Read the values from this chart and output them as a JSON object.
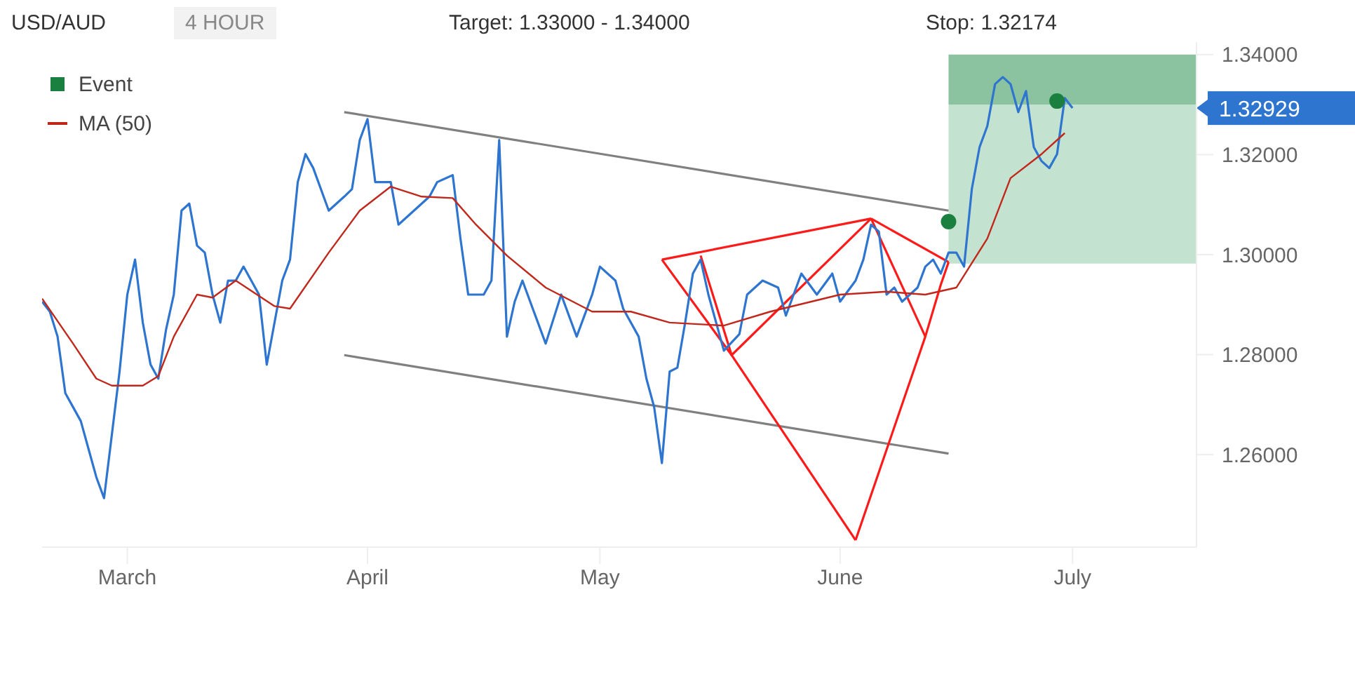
{
  "chart_data": {
    "type": "line",
    "title": "USD/AUD",
    "subtitle": "4 HOUR",
    "xlim": [
      "--02-18",
      "--07-17"
    ],
    "xticks": [
      {
        "value": "--03-01",
        "label": "March"
      },
      {
        "value": "--04-01",
        "label": "April"
      },
      {
        "value": "--05-01",
        "label": "May"
      },
      {
        "value": "--06-01",
        "label": "June"
      },
      {
        "value": "--07-01",
        "label": "July"
      }
    ],
    "ylim": [
      1.2415,
      1.3425
    ],
    "yticks": [
      {
        "value": 1.26,
        "label": "1.26000"
      },
      {
        "value": 1.28,
        "label": "1.28000"
      },
      {
        "value": 1.3,
        "label": "1.30000"
      },
      {
        "value": 1.32,
        "label": "1.32000"
      },
      {
        "value": 1.34,
        "label": "1.34000"
      }
    ],
    "grid": false,
    "legend": "top left",
    "marker": "none",
    "line_style": "solid",
    "bands": [
      {
        "axis": "y",
        "from": 1.33,
        "to": 1.34,
        "color": "#8bc29f"
      },
      {
        "axis": "y",
        "from": 1.2982,
        "to": 1.33,
        "color": "#c4e2d0"
      }
    ],
    "annotations": [
      "Target: 1.33000 - 1.34000",
      "Stop: 1.32174",
      "1.32929"
    ],
    "series": [
      {
        "name": "Event",
        "type": "scatter",
        "marker": "circle",
        "color": "#1a8040",
        "x": [
          "--06-15",
          "--06-29"
        ],
        "values": [
          1.3066,
          1.3307
        ]
      },
      {
        "color": "#808080",
        "x": [
          "--03-29",
          "--06-15"
        ],
        "values": [
          1.3285,
          1.3088
        ]
      },
      {
        "color": "#808080",
        "x": [
          "--03-29",
          "--06-15"
        ],
        "values": [
          1.2799,
          1.2602
        ]
      },
      {
        "color": "#ff1a1a",
        "x": [
          "--05-09",
          "--06-05"
        ],
        "values": [
          1.299,
          1.3072
        ]
      },
      {
        "color": "#ff1a1a",
        "x": [
          "--05-09",
          "--05-18",
          "--06-03"
        ],
        "values": [
          1.299,
          1.2799,
          1.2429
        ]
      },
      {
        "color": "#ff1a1a",
        "x": [
          "--06-03",
          "--06-12",
          "--06-14",
          "--06-15"
        ],
        "values": [
          1.2429,
          1.2836,
          1.294,
          1.2985
        ]
      },
      {
        "color": "#ff1a1a",
        "x": [
          "--06-05",
          "--06-12"
        ],
        "values": [
          1.3072,
          1.2836
        ]
      },
      {
        "color": "#ff1a1a",
        "x": [
          "--05-14",
          "--05-18",
          "--06-05"
        ],
        "values": [
          1.2998,
          1.2799,
          1.3072
        ]
      },
      {
        "color": "#ff1a1a",
        "x": [
          "--06-05",
          "--06-15"
        ],
        "values": [
          1.3072,
          1.2985
        ]
      },
      {
        "color": "#2e75d0",
        "x": [
          "--02-18",
          "--02-19",
          "--02-20",
          "--02-21",
          "--02-22",
          "--02-23",
          "--02-24",
          "--02-25",
          "--02-26",
          "--02-27",
          "--02-28",
          "--03-01",
          "--03-02",
          "--03-03",
          "--03-04",
          "--03-05",
          "--03-06",
          "--03-07",
          "--03-08",
          "--03-09",
          "--03-10",
          "--03-11",
          "--03-12",
          "--03-13",
          "--03-14",
          "--03-15",
          "--03-16",
          "--03-18",
          "--03-19",
          "--03-20",
          "--03-21",
          "--03-22",
          "--03-23",
          "--03-24",
          "--03-25",
          "--03-27",
          "--03-29",
          "--03-30",
          "--03-31",
          "--04-01",
          "--04-02",
          "--04-04",
          "--04-05",
          "--04-07",
          "--04-09",
          "--04-10",
          "--04-12",
          "--04-13",
          "--04-14",
          "--04-16",
          "--04-17",
          "--04-18",
          "--04-19",
          "--04-20",
          "--04-21",
          "--04-23",
          "--04-24",
          "--04-26",
          "--04-28",
          "--04-30",
          "--05-01",
          "--05-03",
          "--05-04",
          "--05-06",
          "--05-07",
          "--05-08",
          "--05-09",
          "--05-10",
          "--05-11",
          "--05-12",
          "--05-13",
          "--05-14",
          "--05-15",
          "--05-16",
          "--05-17",
          "--05-19",
          "--05-20",
          "--05-22",
          "--05-24",
          "--05-25",
          "--05-27",
          "--05-29",
          "--05-31",
          "--06-01",
          "--06-03",
          "--06-04",
          "--06-05",
          "--06-06",
          "--06-07",
          "--06-08",
          "--06-09",
          "--06-10",
          "--06-11",
          "--06-12",
          "--06-13",
          "--06-14",
          "--06-15",
          "--06-16",
          "--06-17",
          "--06-18",
          "--06-19",
          "--06-20",
          "--06-21",
          "--06-22",
          "--06-23",
          "--06-24",
          "--06-25",
          "--06-26",
          "--06-27",
          "--06-28",
          "--06-29",
          "--06-30",
          "--07-01"
        ],
        "values": [
          1.2906,
          1.2886,
          1.2836,
          1.2723,
          1.2695,
          1.2667,
          1.2611,
          1.2555,
          1.2513,
          1.2639,
          1.2766,
          1.292,
          1.299,
          1.2864,
          1.278,
          1.2752,
          1.285,
          1.292,
          1.3088,
          1.3102,
          1.3018,
          1.3004,
          1.292,
          1.2864,
          1.2948,
          1.2948,
          1.2976,
          1.292,
          1.278,
          1.2864,
          1.2948,
          1.299,
          1.3145,
          1.3201,
          1.3173,
          1.3088,
          1.3116,
          1.3131,
          1.3229,
          1.3271,
          1.3145,
          1.3145,
          1.306,
          1.3088,
          1.3116,
          1.3145,
          1.3159,
          1.3032,
          1.292,
          1.292,
          1.2948,
          1.3229,
          1.2836,
          1.2906,
          1.2948,
          1.2864,
          1.2822,
          1.292,
          1.2836,
          1.292,
          1.2976,
          1.2948,
          1.2892,
          1.2836,
          1.2752,
          1.2695,
          1.2583,
          1.2766,
          1.2774,
          1.2864,
          1.2962,
          1.299,
          1.292,
          1.2864,
          1.2808,
          1.2841,
          1.292,
          1.2948,
          1.2934,
          1.2878,
          1.2962,
          1.292,
          1.2962,
          1.2906,
          1.2948,
          1.299,
          1.306,
          1.3046,
          1.292,
          1.2934,
          1.2906,
          1.292,
          1.2934,
          1.2976,
          1.299,
          1.2962,
          1.3004,
          1.3004,
          1.2976,
          1.3131,
          1.3215,
          1.3257,
          1.3341,
          1.3355,
          1.3341,
          1.3285,
          1.3327,
          1.3215,
          1.3187,
          1.3173,
          1.3201,
          1.3313,
          1.3293
        ]
      },
      {
        "name": "MA (50)",
        "color": "#c0281c",
        "x": [
          "--02-18",
          "--02-22",
          "--02-25",
          "--02-27",
          "--03-03",
          "--03-05",
          "--03-07",
          "--03-10",
          "--03-12",
          "--03-15",
          "--03-20",
          "--03-22",
          "--03-27",
          "--03-31",
          "--04-04",
          "--04-08",
          "--04-12",
          "--04-15",
          "--04-19",
          "--04-24",
          "--04-30",
          "--05-05",
          "--05-10",
          "--05-17",
          "--05-23",
          "--06-01",
          "--06-07",
          "--06-12",
          "--06-16",
          "--06-20",
          "--06-23",
          "--06-27",
          "--06-30"
        ],
        "values": [
          1.2912,
          1.2822,
          1.2752,
          1.2738,
          1.2738,
          1.2757,
          1.2836,
          1.292,
          1.2914,
          1.2948,
          1.2897,
          1.2892,
          1.3004,
          1.3088,
          1.3136,
          1.3116,
          1.3113,
          1.306,
          1.2998,
          1.2934,
          1.2886,
          1.2886,
          1.2864,
          1.2858,
          1.2886,
          1.292,
          1.2926,
          1.292,
          1.2934,
          1.3032,
          1.3153,
          1.3201,
          1.3243
        ]
      }
    ]
  }
}
